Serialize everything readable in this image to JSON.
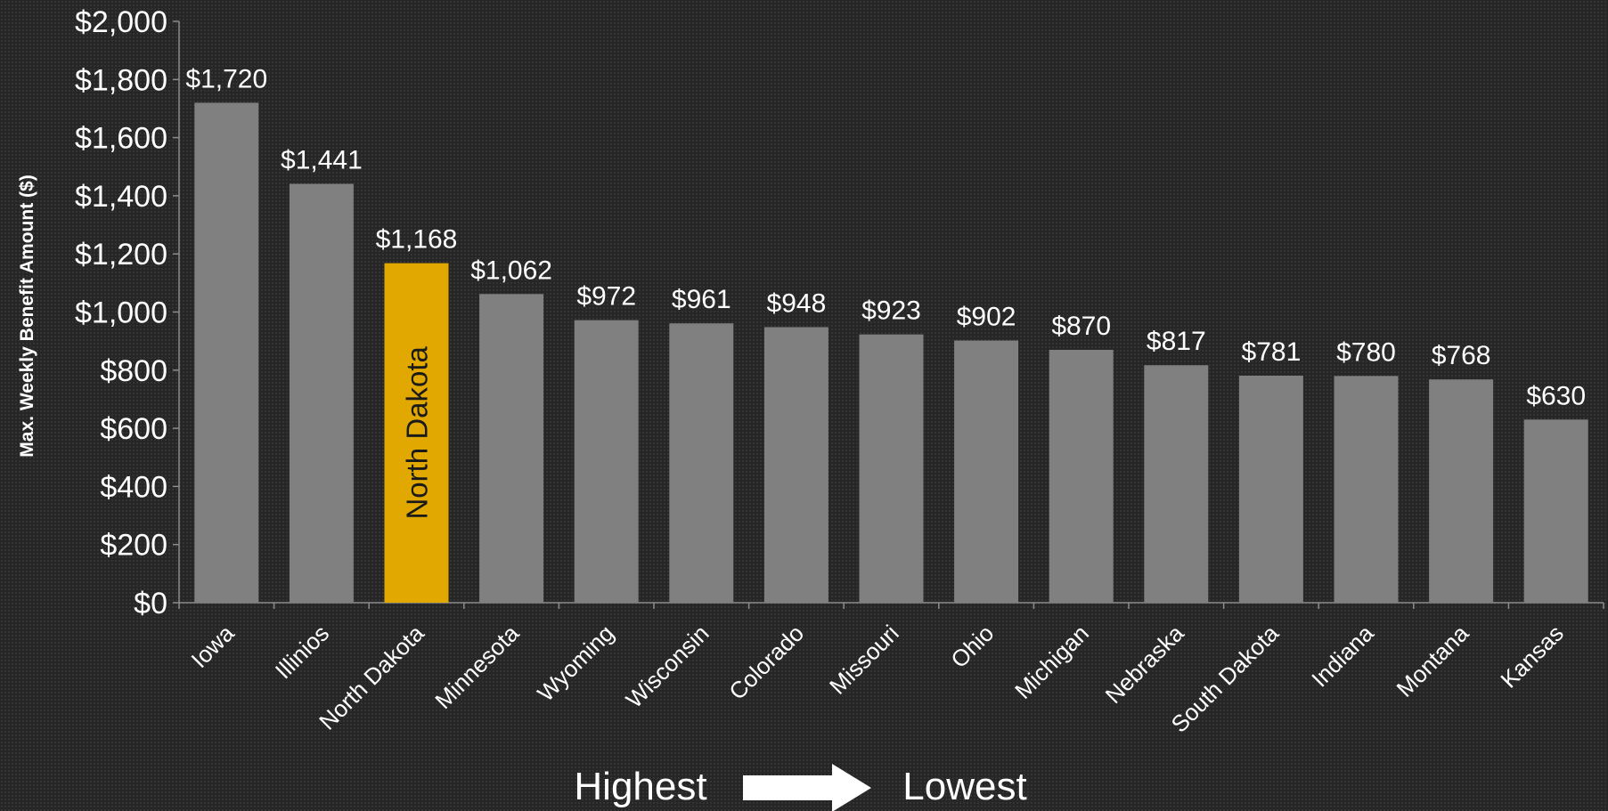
{
  "chart_data": {
    "type": "bar",
    "title": "",
    "ylabel": "Max. Weekly Benefit Amount ($)",
    "xlabel": "",
    "ylim": [
      0,
      2000
    ],
    "y_ticks": [
      0,
      200,
      400,
      600,
      800,
      1000,
      1200,
      1400,
      1600,
      1800,
      2000
    ],
    "y_tick_labels": [
      "$0",
      "$200",
      "$400",
      "$600",
      "$800",
      "$1,000",
      "$1,200",
      "$1,400",
      "$1,600",
      "$1,800",
      "$2,000"
    ],
    "grid": false,
    "legend": "none",
    "categories": [
      "Iowa",
      "Illinios",
      "North Dakota",
      "Minnesota",
      "Wyoming",
      "Wisconsin",
      "Colorado",
      "Missouri",
      "Ohio",
      "Michigan",
      "Nebraska",
      "South Dakota",
      "Indiana",
      "Montana",
      "Kansas"
    ],
    "values": [
      1720,
      1441,
      1168,
      1062,
      972,
      961,
      948,
      923,
      902,
      870,
      817,
      781,
      780,
      768,
      630
    ],
    "data_labels": [
      "$1,720",
      "$1,441",
      "$1,168",
      "$1,062",
      "$972",
      "$961",
      "$948",
      "$923",
      "$902",
      "$870",
      "$817",
      "$781",
      "$780",
      "$768",
      "$630"
    ],
    "highlight": {
      "category": "North Dakota",
      "label": "North Dakota",
      "color": "#E0A800"
    },
    "colors": {
      "bar": "#808080",
      "highlight": "#E0A800",
      "axis": "#8c8c8c",
      "text": "#ffffff",
      "background": "#262626"
    }
  },
  "footer": {
    "left_text": "Highest",
    "right_text": "Lowest",
    "arrow_icon": "right-arrow-icon"
  }
}
